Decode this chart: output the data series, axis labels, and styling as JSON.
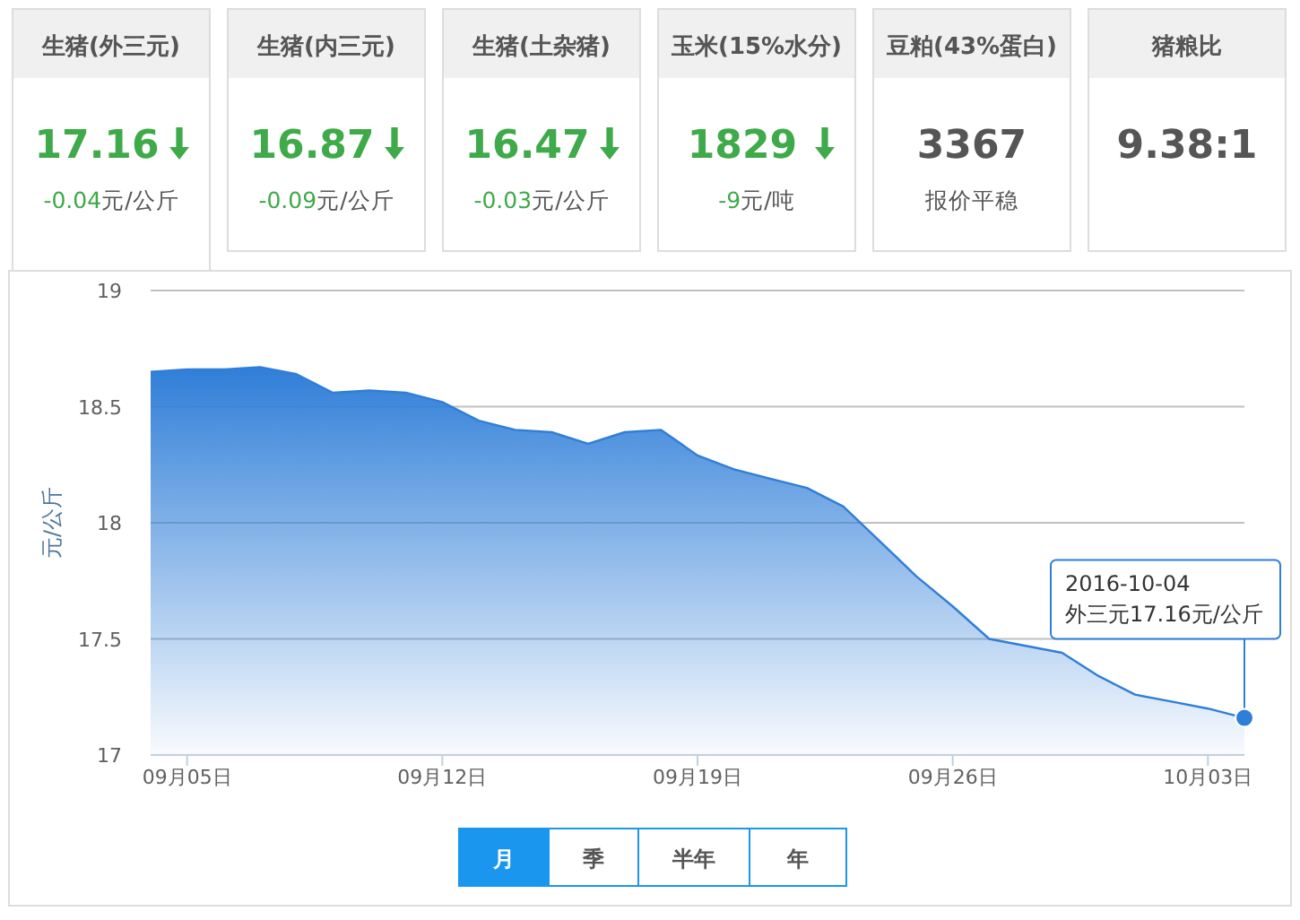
{
  "chart_data": [
    {
      "type": "other",
      "categories": [
        "生猪(外三元)",
        "生猪(内三元)",
        "生猪(土杂猪)",
        "玉米(15%水分)",
        "豆粕(43%蛋白)",
        "猪粮比"
      ],
      "value_labels": [
        "17.16",
        "16.87",
        "16.47",
        "1829",
        "3367",
        "9.38:1"
      ],
      "annotations": [
        "-0.04元/公斤",
        "-0.09元/公斤",
        "-0.03元/公斤",
        "-9元/吨",
        "报价平稳"
      ]
    },
    {
      "type": "area",
      "ylabel": "元/公斤",
      "x": [
        "2016-09-04",
        "2016-09-05",
        "2016-09-06",
        "2016-09-07",
        "2016-09-08",
        "2016-09-09",
        "2016-09-10",
        "2016-09-11",
        "2016-09-12",
        "2016-09-13",
        "2016-09-14",
        "2016-09-15",
        "2016-09-16",
        "2016-09-17",
        "2016-09-18",
        "2016-09-19",
        "2016-09-20",
        "2016-09-21",
        "2016-09-22",
        "2016-09-23",
        "2016-09-24",
        "2016-09-25",
        "2016-09-26",
        "2016-09-27",
        "2016-09-28",
        "2016-09-29",
        "2016-09-30",
        "2016-10-01",
        "2016-10-02",
        "2016-10-03",
        "2016-10-04"
      ],
      "series": [
        {
          "color": "#2f7ed8",
          "values": [
            18.65,
            18.66,
            18.66,
            18.67,
            18.64,
            18.56,
            18.57,
            18.56,
            18.52,
            18.44,
            18.4,
            18.39,
            18.34,
            18.39,
            18.4,
            18.29,
            18.23,
            18.19,
            18.15,
            18.07,
            17.92,
            17.77,
            17.64,
            17.5,
            17.47,
            17.44,
            17.34,
            17.26,
            17.23,
            17.2,
            17.16
          ]
        }
      ],
      "xlim": [
        "2016-09-04",
        "2016-10-04"
      ],
      "xticks": [
        {
          "value": "2016-09-05",
          "label": "09月05日"
        },
        {
          "value": "2016-09-12",
          "label": "09月12日"
        },
        {
          "value": "2016-09-19",
          "label": "09月19日"
        },
        {
          "value": "2016-09-26",
          "label": "09月26日"
        },
        {
          "value": "2016-10-03",
          "label": "10月03日"
        }
      ],
      "ylim": [
        17,
        19
      ],
      "yticks": [
        17,
        17.5,
        18,
        18.5,
        19
      ],
      "grid": "y",
      "annotations": [
        {
          "text": "2016-10-04\n外三元17.16元/公斤",
          "x": "2016-10-04",
          "y": 17.16
        },
        "月",
        "季",
        "半年",
        "年"
      ]
    }
  ]
}
